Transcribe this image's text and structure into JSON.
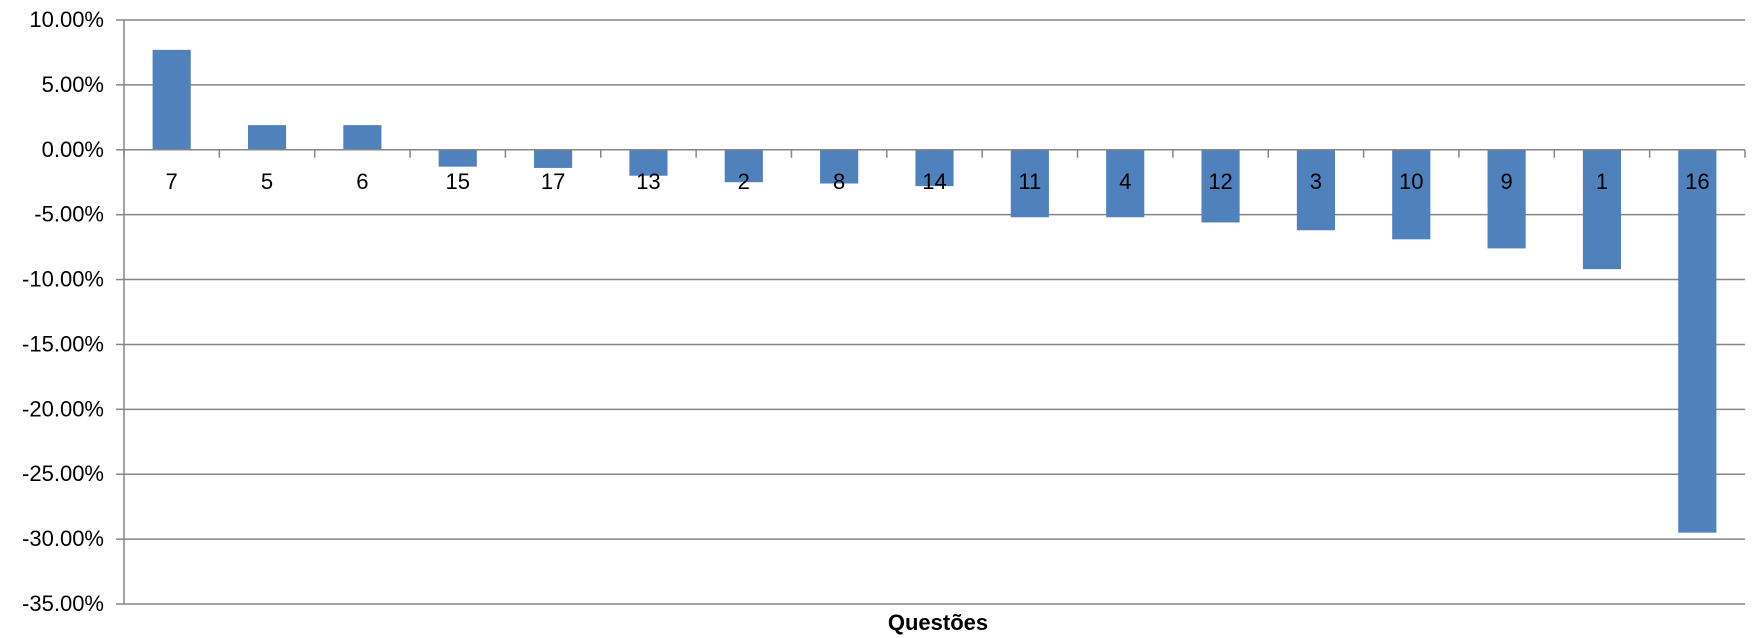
{
  "chart_data": {
    "type": "bar",
    "title": "",
    "xlabel": "Questões",
    "ylabel": "",
    "categories": [
      "7",
      "5",
      "6",
      "15",
      "17",
      "13",
      "2",
      "8",
      "14",
      "11",
      "4",
      "12",
      "3",
      "10",
      "9",
      "1",
      "16"
    ],
    "series": [
      {
        "values": [
          7.7,
          1.9,
          1.9,
          -1.3,
          -1.4,
          -2.0,
          -2.5,
          -2.6,
          -2.8,
          -5.2,
          -5.2,
          -5.6,
          -6.2,
          -6.9,
          -7.6,
          -9.2,
          -29.5
        ]
      }
    ],
    "ylim": [
      -35,
      10
    ],
    "yticks": [
      10,
      5,
      0,
      -5,
      -10,
      -15,
      -20,
      -25,
      -30,
      -35
    ],
    "ytick_labels": [
      "10.00%",
      "5.00%",
      "0.00%",
      "-5.00%",
      "-10.00%",
      "-15.00%",
      "-20.00%",
      "-25.00%",
      "-30.00%",
      "-35.00%"
    ],
    "grid": true,
    "legend": "none",
    "colors": {
      "bar": "#4F81BD",
      "grid": "#868686",
      "axis": "#868686"
    }
  }
}
